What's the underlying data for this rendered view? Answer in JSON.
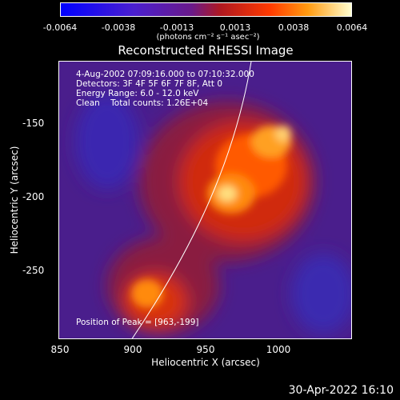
{
  "colorbar": {
    "ticks": [
      "-0.0064",
      "-0.0038",
      "-0.0013",
      "0.0013",
      "0.0038",
      "0.0064"
    ],
    "units": "(photons cm⁻² s⁻¹ asec⁻²)"
  },
  "title": "Reconstructed RHESSI Image",
  "info": {
    "time_range": "4-Aug-2002 07:09:16.000 to 07:10:32.000",
    "detectors": "Detectors: 3F 4F 5F 6F 7F 8F, Att 0",
    "energy": "Energy Range: 6.0 - 12.0 keV",
    "clean": "Clean    Total counts: 1.26E+04",
    "peak": "Position of Peak = [963,-199]"
  },
  "axes": {
    "xlabel": "Heliocentric X (arcsec)",
    "ylabel": "Heliocentric Y (arcsec)",
    "xticks": [
      "850",
      "900",
      "950",
      "1000"
    ],
    "yticks": [
      "-150",
      "-200",
      "-250"
    ]
  },
  "timestamp": "30-Apr-2022 16:10"
}
